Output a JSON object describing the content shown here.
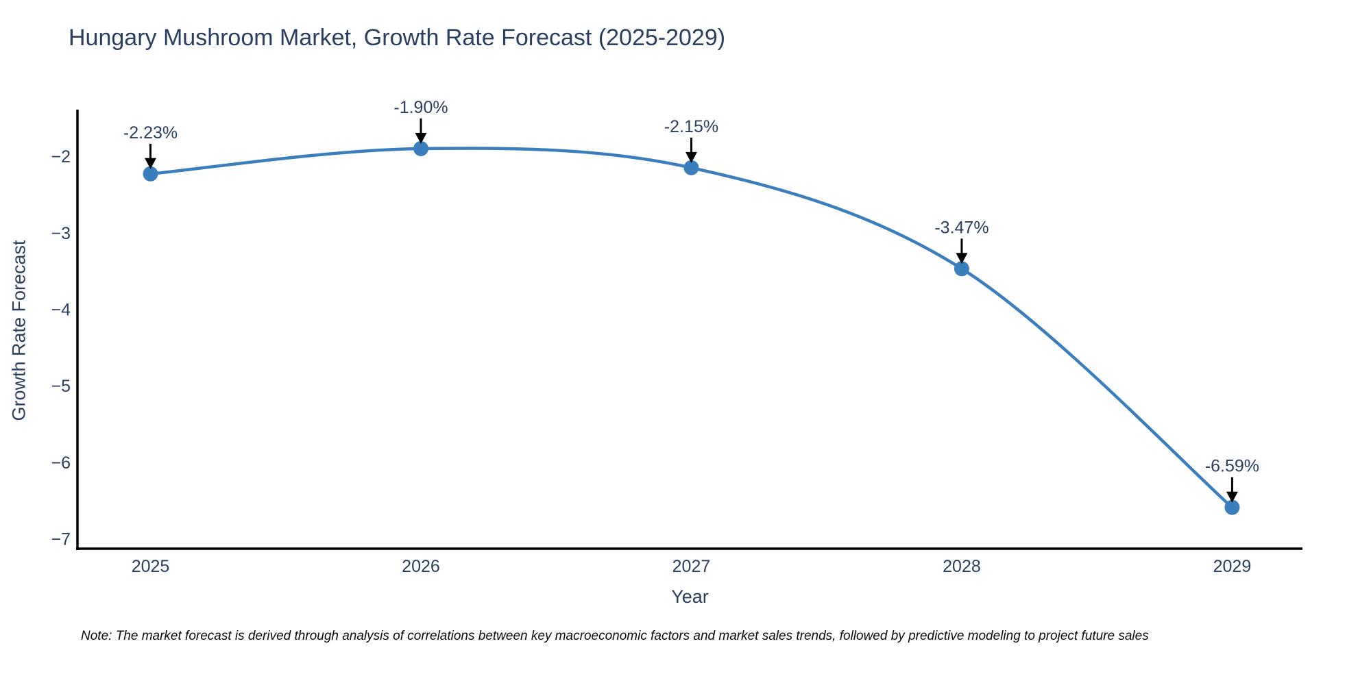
{
  "page": {
    "title": "Hungary Mushroom Market, Growth Rate Forecast (2025-2029)",
    "note": "Note: The market forecast is derived through analysis of correlations between key macroeconomic factors and market sales trends, followed by predictive modeling to project future sales"
  },
  "chart_data": {
    "type": "line",
    "line_shape": "spline",
    "title": "Hungary Mushroom Market, Growth Rate Forecast (2025-2029)",
    "xlabel": "Year",
    "ylabel": "Growth Rate Forecast",
    "x": [
      2025,
      2026,
      2027,
      2028,
      2029
    ],
    "values": [
      -2.23,
      -1.9,
      -2.15,
      -3.47,
      -6.59
    ],
    "point_labels": [
      "-2.23%",
      "-1.90%",
      "-2.15%",
      "-3.47%",
      "-6.59%"
    ],
    "xticks": [
      "2025",
      "2026",
      "2027",
      "2028",
      "2029"
    ],
    "xtick_positions": [
      2025,
      2026,
      2027,
      2028,
      2029
    ],
    "yticks": [
      -2,
      -3,
      -4,
      -5,
      -6,
      -7
    ],
    "xlim": [
      2024.73,
      2029.26
    ],
    "ylim": [
      -7.13,
      -1.39
    ],
    "grid": false,
    "legend": "none",
    "colors": {
      "line": "#3a7ebd",
      "marker": "#3a7ebd",
      "axis_line": "#000000",
      "tick_text": "#2a3f5f",
      "annotation_text": "#2a3f5f",
      "annotation_arrow": "#000000",
      "title_text": "#2a3f5f",
      "note_text": "#0a0a0a",
      "background": "#ffffff"
    }
  }
}
